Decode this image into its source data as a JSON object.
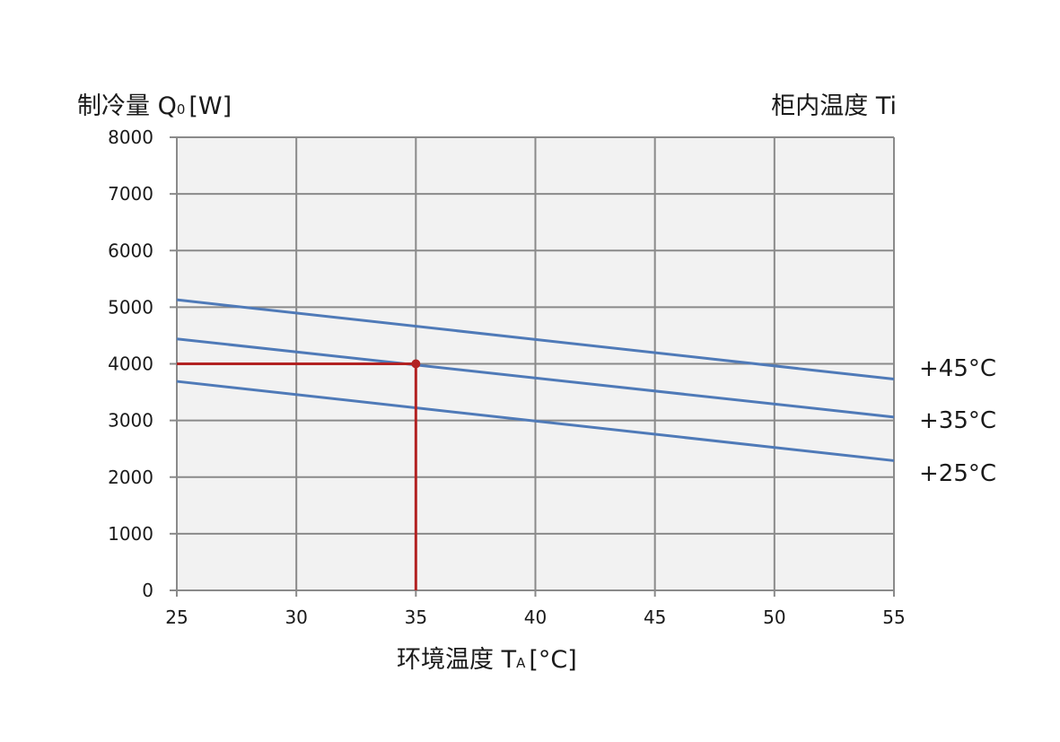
{
  "chart_data": {
    "type": "line",
    "ylabel": {
      "main": "制冷量 Q",
      "sub": "0",
      "unit": "[W]"
    },
    "xlabel": {
      "main": "环境温度 T",
      "sub": "A",
      "unit": "[°C]"
    },
    "legend_title": "柜内温度 Ti",
    "xlim": [
      25,
      55
    ],
    "ylim": [
      0,
      8000
    ],
    "x_ticks": [
      25,
      30,
      35,
      40,
      45,
      50,
      55
    ],
    "y_ticks": [
      0,
      1000,
      2000,
      3000,
      4000,
      5000,
      6000,
      7000,
      8000
    ],
    "grid": true,
    "series": [
      {
        "name": "+45°C",
        "x": [
          25,
          55
        ],
        "values": [
          5130,
          3730
        ]
      },
      {
        "name": "+35°C",
        "x": [
          25,
          55
        ],
        "values": [
          4440,
          3060
        ]
      },
      {
        "name": "+25°C",
        "x": [
          25,
          55
        ],
        "values": [
          3690,
          2290
        ]
      }
    ],
    "annotation": {
      "x": 35,
      "y": 4000
    },
    "colors": {
      "series": "#4f7ab8",
      "annotation": "#b22222",
      "grid": "#8a8a8a",
      "plot_bg": "#f2f2f2"
    }
  }
}
